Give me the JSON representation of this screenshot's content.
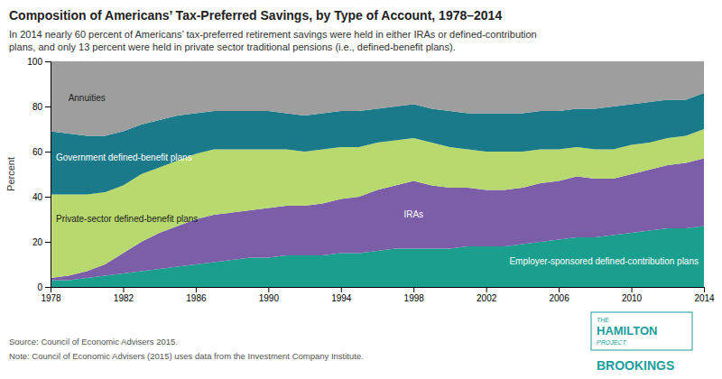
{
  "chart_data": {
    "type": "area",
    "stacked": true,
    "title": "Composition of Americans’ Tax-Preferred Savings, by Type of Account, 1978–2014",
    "subtitle": "In 2014 nearly 60 percent of Americans’ tax-preferred retirement savings were held in either IRAs or defined-contribution\nplans, and only 13 percent were held in private sector traditional pensions (i.e., defined-benefit plans).",
    "y_label": "Percent",
    "source": "Source: Council of Economic Advisers 2015.",
    "note": "Note: Council of Economic Advisers (2015) uses data from the Investment Company Institute.",
    "logo": [
      "THE",
      "HAMILTON",
      "PROJECT",
      "BROOKINGS"
    ],
    "x": [
      1978,
      1979,
      1980,
      1981,
      1982,
      1983,
      1984,
      1985,
      1986,
      1987,
      1988,
      1989,
      1990,
      1991,
      1992,
      1993,
      1994,
      1995,
      1996,
      1997,
      1998,
      1999,
      2000,
      2001,
      2002,
      2003,
      2004,
      2005,
      2006,
      2007,
      2008,
      2009,
      2010,
      2011,
      2012,
      2013,
      2014
    ],
    "series": [
      {
        "name": "Employer-sponsored defined-contribution plans",
        "color": "#1a9e8e",
        "values": [
          3,
          3,
          4,
          5,
          6,
          7,
          8,
          9,
          10,
          11,
          12,
          13,
          13,
          14,
          14,
          14,
          15,
          15,
          16,
          17,
          17,
          17,
          17,
          18,
          18,
          18,
          19,
          20,
          21,
          22,
          22,
          23,
          24,
          25,
          26,
          26,
          27
        ]
      },
      {
        "name": "IRAs",
        "color": "#7b5ea7",
        "values": [
          1,
          2,
          3,
          5,
          9,
          13,
          16,
          18,
          20,
          21,
          21,
          21,
          22,
          22,
          22,
          23,
          24,
          25,
          27,
          28,
          30,
          28,
          27,
          26,
          25,
          25,
          25,
          26,
          26,
          27,
          26,
          25,
          26,
          27,
          28,
          29,
          30
        ]
      },
      {
        "name": "Private-sector defined-benefit plans",
        "color": "#b8d96e",
        "values": [
          37,
          36,
          34,
          32,
          30,
          30,
          29,
          29,
          29,
          29,
          28,
          27,
          26,
          25,
          24,
          24,
          23,
          22,
          21,
          20,
          19,
          19,
          18,
          17,
          17,
          17,
          16,
          15,
          14,
          13,
          13,
          13,
          13,
          12,
          12,
          12,
          13
        ]
      },
      {
        "name": "Government defined-benefit plans",
        "color": "#1a7a8a",
        "values": [
          28,
          27,
          26,
          25,
          24,
          22,
          21,
          20,
          18,
          17,
          17,
          17,
          17,
          16,
          16,
          16,
          16,
          16,
          15,
          15,
          15,
          15,
          16,
          16,
          17,
          17,
          17,
          17,
          17,
          17,
          18,
          19,
          18,
          18,
          17,
          16,
          16
        ]
      },
      {
        "name": "Annuities",
        "color": "#9e9e9e",
        "values": [
          31,
          32,
          33,
          33,
          31,
          28,
          26,
          24,
          23,
          22,
          22,
          22,
          22,
          23,
          24,
          23,
          22,
          22,
          21,
          20,
          19,
          21,
          22,
          23,
          23,
          23,
          23,
          22,
          22,
          21,
          21,
          20,
          19,
          18,
          17,
          17,
          14
        ]
      }
    ],
    "xlim": [
      1978,
      2014
    ],
    "xticks": [
      1978,
      1982,
      1986,
      1990,
      1994,
      1998,
      2002,
      2006,
      2010,
      2014
    ],
    "ylim": [
      0,
      100
    ],
    "yticks": [
      0,
      20,
      40,
      60,
      80,
      100
    ],
    "grid": true
  }
}
